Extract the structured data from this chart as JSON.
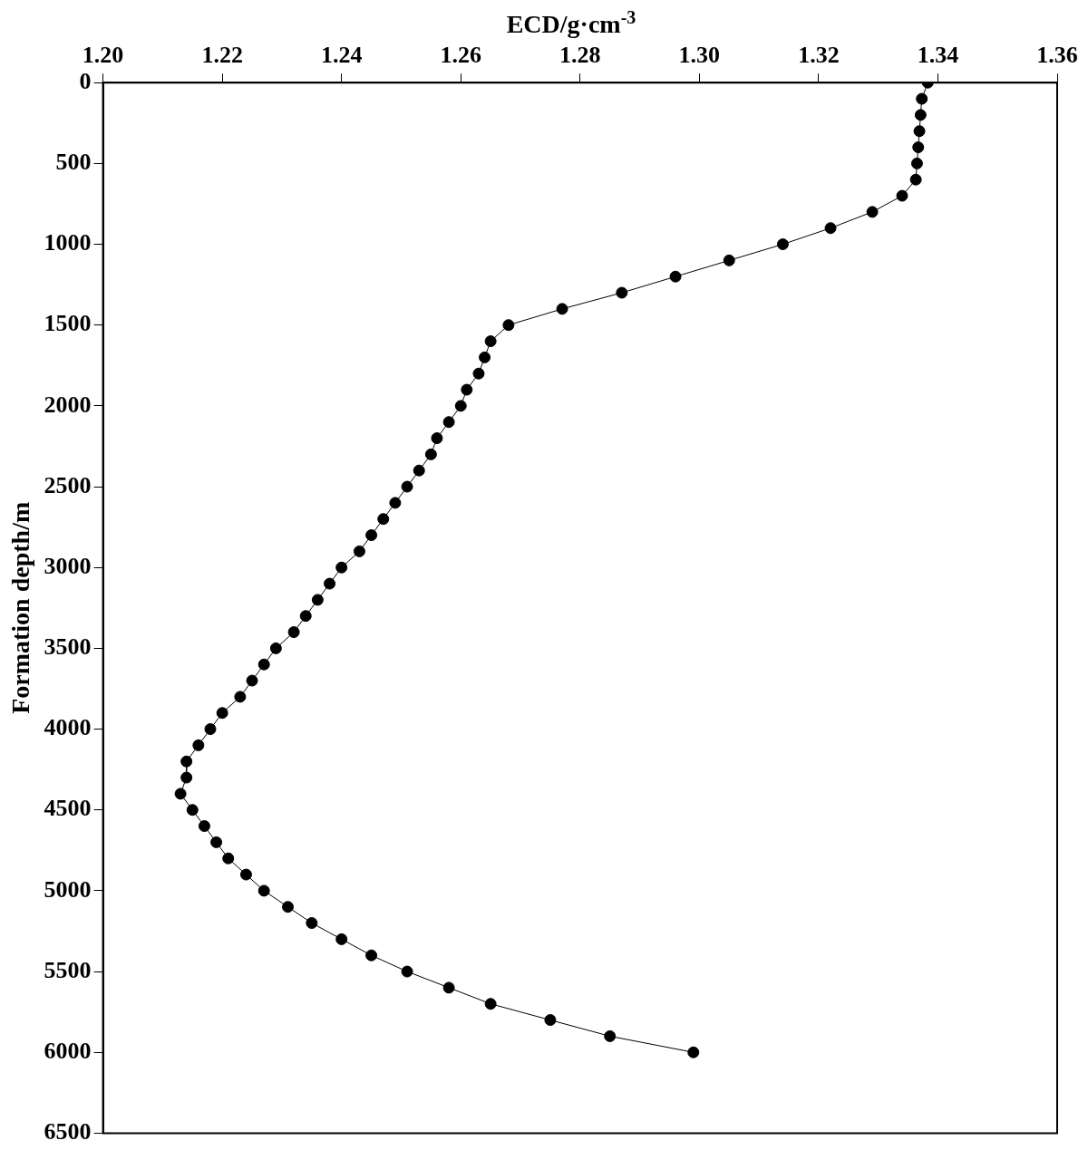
{
  "chart_data": {
    "type": "line",
    "xlabel": "ECD/g·cm$^{-3}$",
    "ylabel": "Formation depth/m",
    "x": [
      1.3383,
      1.3373,
      1.3371,
      1.3369,
      1.3367,
      1.3365,
      1.3363,
      1.334,
      1.329,
      1.322,
      1.314,
      1.305,
      1.296,
      1.287,
      1.277,
      1.268,
      1.265,
      1.264,
      1.263,
      1.261,
      1.26,
      1.258,
      1.256,
      1.255,
      1.253,
      1.251,
      1.249,
      1.247,
      1.245,
      1.243,
      1.24,
      1.238,
      1.236,
      1.234,
      1.232,
      1.229,
      1.227,
      1.225,
      1.223,
      1.22,
      1.218,
      1.216,
      1.214,
      1.214,
      1.213,
      1.215,
      1.217,
      1.219,
      1.221,
      1.224,
      1.227,
      1.231,
      1.235,
      1.24,
      1.245,
      1.251,
      1.258,
      1.265,
      1.275,
      1.285,
      1.299
    ],
    "series": [
      {
        "color": "#000000",
        "values": [
          0,
          100,
          200,
          300,
          400,
          500,
          600,
          700,
          800,
          900,
          1000,
          1100,
          1200,
          1300,
          1400,
          1500,
          1600,
          1700,
          1800,
          1900,
          2000,
          2100,
          2200,
          2300,
          2400,
          2500,
          2600,
          2700,
          2800,
          2900,
          3000,
          3100,
          3200,
          3300,
          3400,
          3500,
          3600,
          3700,
          3800,
          3900,
          4000,
          4100,
          4200,
          4300,
          4400,
          4500,
          4600,
          4700,
          4800,
          4900,
          5000,
          5100,
          5200,
          5300,
          5400,
          5500,
          5600,
          5700,
          5800,
          5900,
          6000
        ]
      }
    ],
    "xlim": [
      1.2,
      1.36
    ],
    "xticks": [
      {
        "value": 1.2,
        "label": "1.20"
      },
      {
        "value": 1.22,
        "label": "1.22"
      },
      {
        "value": 1.24,
        "label": "1.24"
      },
      {
        "value": 1.26,
        "label": "1.26"
      },
      {
        "value": 1.28,
        "label": "1.28"
      },
      {
        "value": 1.3,
        "label": "1.30"
      },
      {
        "value": 1.32,
        "label": "1.32"
      },
      {
        "value": 1.34,
        "label": "1.34"
      },
      {
        "value": 1.36,
        "label": "1.36"
      }
    ],
    "ylim": [
      6500,
      0
    ],
    "yticks": [
      0,
      500,
      1000,
      1500,
      2000,
      2500,
      3000,
      3500,
      4000,
      4500,
      5000,
      5500,
      6000,
      6500
    ],
    "marker": "circle",
    "line_style": "solid",
    "grid": false,
    "legend": false
  }
}
